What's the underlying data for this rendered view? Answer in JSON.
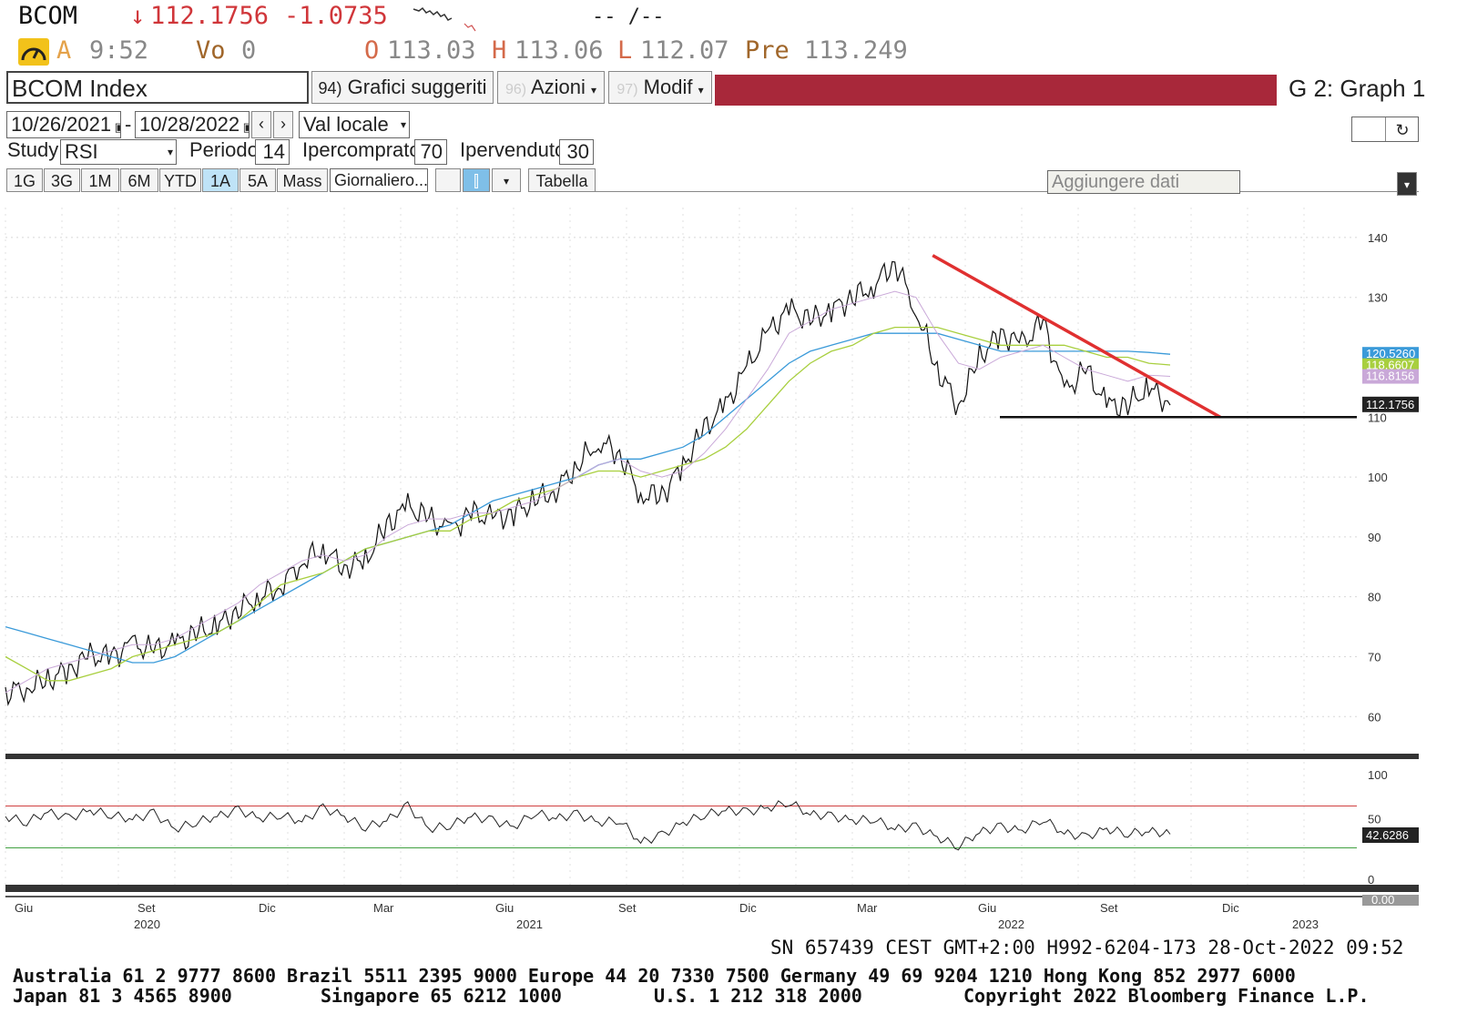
{
  "header": {
    "ticker": "BCOM",
    "arrow": "↓",
    "last_price": "112.1756",
    "change": "-1.0735",
    "time_placeholder": "-- /--",
    "alert_letter": "A",
    "time": "9:52",
    "vol_label": "Vo",
    "vol_value": "0",
    "open_label": "O",
    "open_value": "113.03",
    "high_label": "H",
    "high_value": "113.06",
    "low_label": "L",
    "low_value": "112.07",
    "prev_label": "Pre",
    "prev_value": "113.249"
  },
  "toolbar": {
    "security": "BCOM Index",
    "suggested_num": "94)",
    "suggested_label": "Grafici suggeriti",
    "actions_num": "96)",
    "actions_label": "Azioni",
    "edit_num": "97)",
    "edit_label": "Modif",
    "graph_label": "G 2: Graph 1"
  },
  "range": {
    "start_date": "10/26/2021",
    "separator": "-",
    "end_date": "10/28/2022",
    "currency": "Val locale"
  },
  "study": {
    "label": "Study",
    "value": "RSI",
    "period_label": "Periodo",
    "period_value": "14",
    "overbought_label": "Ipercomprato",
    "overbought_value": "70",
    "oversold_label": "Ipervenduto",
    "oversold_value": "30"
  },
  "period_buttons": [
    "1G",
    "3G",
    "1M",
    "6M",
    "YTD",
    "1A",
    "5A",
    "Mass"
  ],
  "active_period": "1A",
  "frequency": "Giornaliero...",
  "table_button": "Tabella",
  "add_data": "Aggiungere dati",
  "colors": {
    "accent_red": "#a8283a",
    "price_line": "#111111",
    "ma_blue": "#3a9ad9",
    "ma_green": "#a8cf3e",
    "ma_purple": "#c9a8d8",
    "trend_red": "#e03030"
  },
  "chart_data": {
    "type": "line",
    "price_panel": {
      "y_ticks": [
        60,
        70,
        80,
        90,
        100,
        110,
        130,
        140
      ],
      "ylim": [
        57,
        145
      ],
      "last_value_label": "112.1756",
      "ma_labels": [
        {
          "label": "120.5260",
          "color": "#3a9ad9"
        },
        {
          "label": "118.6607",
          "color": "#a8cf3e"
        },
        {
          "label": "116.8156",
          "color": "#c9a8d8"
        }
      ],
      "series": [
        {
          "values": [
            64,
            65,
            66,
            68,
            70,
            70,
            72,
            71,
            72,
            74,
            75,
            78,
            80,
            82,
            86,
            88,
            85,
            86,
            92,
            95,
            93,
            91,
            94,
            93,
            94,
            96,
            98,
            102,
            106,
            104,
            97,
            97,
            102,
            108,
            112,
            118,
            124,
            128,
            126,
            128,
            130,
            132,
            136,
            128,
            118,
            112,
            120,
            124,
            122,
            126,
            114,
            118,
            112,
            112,
            115,
            112
          ]
        },
        {
          "values": [
            75,
            74,
            73,
            72,
            71,
            70,
            69,
            69,
            70,
            72,
            74,
            76,
            78,
            80,
            82,
            84,
            86,
            88,
            89,
            90,
            91,
            92,
            94,
            96,
            97,
            98,
            99,
            100,
            102,
            103,
            103,
            104,
            105,
            107,
            110,
            113,
            116,
            119,
            121,
            122,
            123,
            124,
            124,
            124,
            124,
            123,
            122,
            121,
            121,
            121,
            121,
            121,
            121,
            121,
            120.8,
            120.5
          ]
        },
        {
          "values": [
            70,
            68,
            66,
            66,
            67,
            68,
            70,
            71,
            72,
            73,
            74,
            76,
            79,
            82,
            83,
            84,
            86,
            88,
            89,
            90,
            91,
            91,
            93,
            94,
            96,
            97,
            98,
            100,
            101,
            101,
            100,
            101,
            102,
            103,
            105,
            108,
            112,
            116,
            119,
            121,
            122,
            124,
            125,
            125,
            125,
            124,
            123,
            122,
            122,
            122,
            122,
            121,
            120,
            120,
            119,
            118.7
          ]
        },
        {
          "values": [
            64,
            66,
            68,
            69,
            70,
            71,
            72,
            72,
            73,
            75,
            77,
            79,
            82,
            84,
            86,
            87,
            86,
            87,
            90,
            92,
            93,
            93,
            94,
            94,
            95,
            96,
            98,
            100,
            102,
            103,
            101,
            100,
            101,
            104,
            108,
            113,
            118,
            124,
            126,
            128,
            129,
            130,
            131,
            130,
            124,
            119,
            118,
            120,
            121,
            122,
            120,
            118,
            117,
            116,
            117,
            116.8
          ]
        }
      ],
      "trendline": {
        "start": 137,
        "end": 110
      },
      "support": 110
    },
    "rsi_panel": {
      "y_ticks": [
        0,
        100
      ],
      "partial_tick": "50",
      "overbought": 70,
      "oversold": 30,
      "last_value_label": "42.6286",
      "series": [
        {
          "values": [
            60,
            55,
            64,
            58,
            66,
            62,
            57,
            63,
            48,
            55,
            60,
            66,
            58,
            62,
            55,
            68,
            60,
            50,
            56,
            70,
            48,
            52,
            60,
            56,
            50,
            64,
            58,
            62,
            54,
            57,
            35,
            42,
            54,
            62,
            66,
            64,
            68,
            74,
            62,
            60,
            56,
            58,
            48,
            50,
            40,
            32,
            45,
            50,
            46,
            58,
            44,
            40,
            48,
            44,
            46,
            43
          ]
        }
      ]
    },
    "x_ticks": [
      "Giu",
      "Set",
      "Dic",
      "Mar",
      "Giu",
      "Set",
      "Dic",
      "Mar",
      "Giu",
      "Set",
      "Dic"
    ],
    "x_years": [
      "2020",
      "2021",
      "2022",
      "2023"
    ],
    "lower_axis_value": "0.00"
  },
  "footer": {
    "session_line": "SN 657439 CEST GMT+2:00 H992-6204-173 28-Oct-2022 09:52",
    "contacts_line1": "Australia 61 2 9777 8600 Brazil 5511 2395 9000 Europe 44 20 7330 7500 Germany 49 69 9204 1210 Hong Kong 852 2977 6000",
    "contacts_line2_left": "Japan 81 3 4565 8900",
    "contacts_line2_mid": "Singapore 65 6212 1000",
    "contacts_line2_us": "U.S. 1 212 318 2000",
    "copyright": "Copyright 2022 Bloomberg Finance L.P."
  }
}
